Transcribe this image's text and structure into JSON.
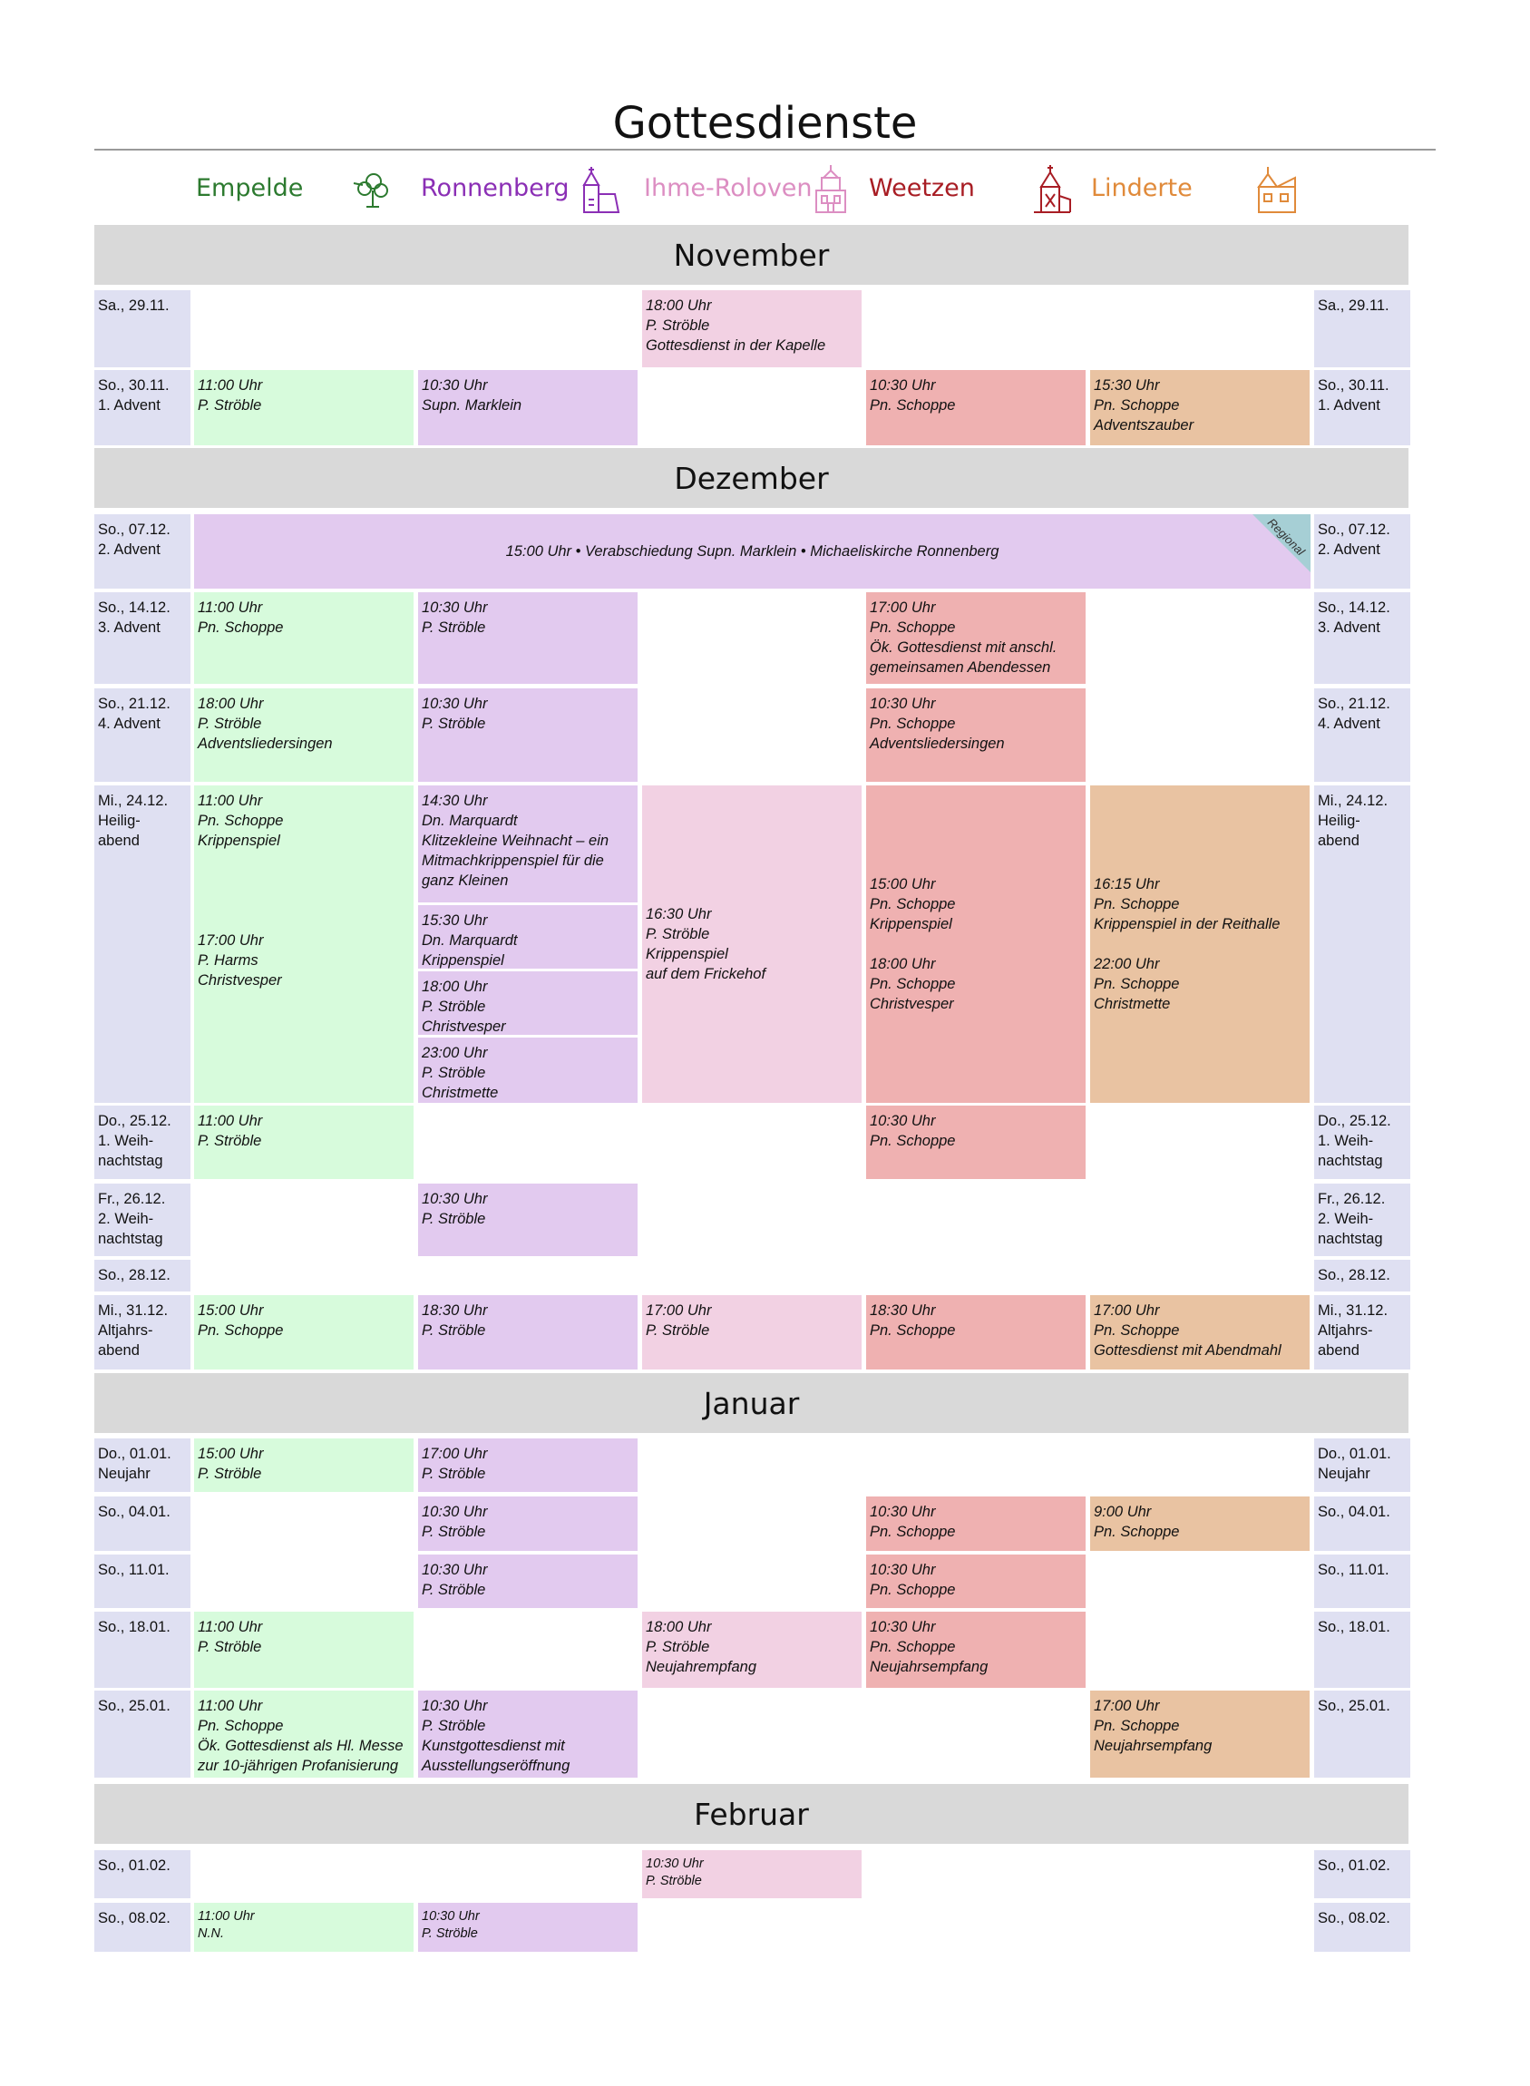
{
  "title": "Gottesdienste",
  "parishes": [
    {
      "key": "emp",
      "name": "Empelde",
      "color": "#2c7a2f",
      "icon": "tree-icon",
      "fill": "#d7fbdc"
    },
    {
      "key": "ron",
      "name": "Ronnenberg",
      "color": "#8b2fb5",
      "icon": "church-icon",
      "fill": "#e2caef"
    },
    {
      "key": "ihm",
      "name": "Ihme-Roloven",
      "color": "#dc8ec2",
      "icon": "tower-icon",
      "fill": "#f2d1e3"
    },
    {
      "key": "wee",
      "name": "Weetzen",
      "color": "#a81d24",
      "icon": "chapel-icon",
      "fill": "#efb1b1"
    },
    {
      "key": "lin",
      "name": "Linderte",
      "color": "#e08a3a",
      "icon": "house-icon",
      "fill": "#e9c3a2"
    }
  ],
  "months": [
    "November",
    "Dezember",
    "Januar",
    "Februar"
  ],
  "date_color": "#dfe0f2",
  "regional_color": "#a6cfd5",
  "rows": [
    {
      "date": "Sa., 29.11.",
      "events": [
        {
          "col": "ihm",
          "text": "18:00 Uhr\nP. Ströble\nGottesdienst in der Kapelle"
        }
      ]
    },
    {
      "date": "So., 30.11.\n1. Advent",
      "events": [
        {
          "col": "emp",
          "text": "11:00 Uhr\nP. Ströble"
        },
        {
          "col": "ron",
          "text": "10:30 Uhr\nSupn. Marklein"
        },
        {
          "col": "wee",
          "text": "10:30 Uhr\nPn. Schoppe"
        },
        {
          "col": "lin",
          "text": "15:30 Uhr\nPn. Schoppe\nAdventszauber"
        }
      ]
    },
    {
      "date": "So., 07.12.\n2. Advent",
      "regional": {
        "text": "15:00 Uhr • Verabschiedung Supn. Marklein • Michaeliskirche Ronnenberg",
        "badge": "Regional"
      }
    },
    {
      "date": "So., 14.12.\n3. Advent",
      "events": [
        {
          "col": "emp",
          "text": "11:00 Uhr\nPn. Schoppe"
        },
        {
          "col": "ron",
          "text": "10:30 Uhr\nP. Ströble"
        },
        {
          "col": "wee",
          "text": "17:00 Uhr\nPn. Schoppe\nÖk. Gottesdienst mit anschl. gemeinsamen Abendessen"
        }
      ]
    },
    {
      "date": "So., 21.12.\n4. Advent",
      "events": [
        {
          "col": "emp",
          "text": "18:00 Uhr\nP. Ströble\nAdventsliedersingen"
        },
        {
          "col": "ron",
          "text": "10:30 Uhr\nP. Ströble"
        },
        {
          "col": "wee",
          "text": "10:30 Uhr\nPn. Schoppe\nAdventsliedersingen"
        }
      ]
    },
    {
      "date": "Mi., 24.12.\nHeilig-\nabend",
      "events": [
        {
          "col": "emp",
          "text": "11:00 Uhr\nPn. Schoppe\nKrippenspiel\n\n\n\n\n17:00 Uhr\nP. Harms\nChristvesper"
        },
        {
          "col": "ron",
          "text": "14:30 Uhr\nDn. Marquardt\nKlitzekleine Weihnacht – ein Mitmachkrippenspiel für die ganz Kleinen"
        },
        {
          "col": "ron",
          "text": "15:30 Uhr\nDn. Marquardt\nKrippenspiel"
        },
        {
          "col": "ron",
          "text": "18:00 Uhr\nP. Ströble\nChristvesper"
        },
        {
          "col": "ron",
          "text": "23:00 Uhr\nP. Ströble\nChristmette"
        },
        {
          "col": "ihm",
          "text": "16:30 Uhr\nP. Ströble\nKrippenspiel\nauf dem Frickehof"
        },
        {
          "col": "wee",
          "text": "15:00 Uhr\nPn. Schoppe\nKrippenspiel\n\n18:00 Uhr\nPn. Schoppe\nChristvesper"
        },
        {
          "col": "lin",
          "text": "16:15 Uhr\nPn. Schoppe\nKrippenspiel in der Reithalle\n\n22:00 Uhr\nPn. Schoppe\nChristmette"
        }
      ]
    },
    {
      "date": "Do., 25.12.\n1. Weih-\nnachtstag",
      "events": [
        {
          "col": "emp",
          "text": "11:00 Uhr\nP. Ströble"
        },
        {
          "col": "wee",
          "text": "10:30 Uhr\nPn. Schoppe"
        }
      ]
    },
    {
      "date": "Fr., 26.12.\n2. Weih-\nnachtstag",
      "events": [
        {
          "col": "ron",
          "text": "10:30 Uhr\nP. Ströble"
        }
      ]
    },
    {
      "date": "So., 28.12.",
      "events": []
    },
    {
      "date": "Mi., 31.12.\nAltjahrs-\nabend",
      "events": [
        {
          "col": "emp",
          "text": "15:00 Uhr\nPn. Schoppe"
        },
        {
          "col": "ron",
          "text": "18:30 Uhr\nP. Ströble"
        },
        {
          "col": "ihm",
          "text": "17:00 Uhr\nP. Ströble"
        },
        {
          "col": "wee",
          "text": "18:30 Uhr\nPn. Schoppe"
        },
        {
          "col": "lin",
          "text": "17:00 Uhr\nPn. Schoppe\nGottesdienst mit Abendmahl"
        }
      ]
    },
    {
      "date": "Do., 01.01.\nNeujahr",
      "events": [
        {
          "col": "emp",
          "text": "15:00 Uhr\nP. Ströble"
        },
        {
          "col": "ron",
          "text": "17:00 Uhr\nP. Ströble"
        }
      ]
    },
    {
      "date": "So., 04.01.",
      "events": [
        {
          "col": "ron",
          "text": "10:30 Uhr\nP. Ströble"
        },
        {
          "col": "wee",
          "text": "10:30 Uhr\nPn. Schoppe"
        },
        {
          "col": "lin",
          "text": "9:00 Uhr\nPn. Schoppe"
        }
      ]
    },
    {
      "date": "So., 11.01.",
      "events": [
        {
          "col": "ron",
          "text": "10:30 Uhr\nP. Ströble"
        },
        {
          "col": "wee",
          "text": "10:30 Uhr\nPn. Schoppe"
        }
      ]
    },
    {
      "date": "So., 18.01.",
      "events": [
        {
          "col": "emp",
          "text": "11:00 Uhr\nP. Ströble"
        },
        {
          "col": "ihm",
          "text": "18:00 Uhr\nP. Ströble\nNeujahrempfang"
        },
        {
          "col": "wee",
          "text": "10:30 Uhr\nPn. Schoppe\nNeujahrsempfang"
        }
      ]
    },
    {
      "date": "So., 25.01.",
      "events": [
        {
          "col": "emp",
          "text": "11:00 Uhr\nPn. Schoppe\nÖk. Gottesdienst als Hl. Messe zur 10-jährigen Profanisierung"
        },
        {
          "col": "ron",
          "text": "10:30 Uhr\nP. Ströble\nKunstgottesdienst mit Ausstellungseröffnung"
        },
        {
          "col": "lin",
          "text": "17:00 Uhr\nPn. Schoppe\nNeujahrsempfang"
        }
      ]
    },
    {
      "date": "So., 01.02.",
      "events": [
        {
          "col": "ihm",
          "text": "10:30 Uhr\nP. Ströble"
        }
      ]
    },
    {
      "date": "So., 08.02.",
      "events": [
        {
          "col": "emp",
          "text": "11:00 Uhr\nN.N."
        },
        {
          "col": "ron",
          "text": "10:30 Uhr\nP. Ströble"
        }
      ]
    }
  ]
}
